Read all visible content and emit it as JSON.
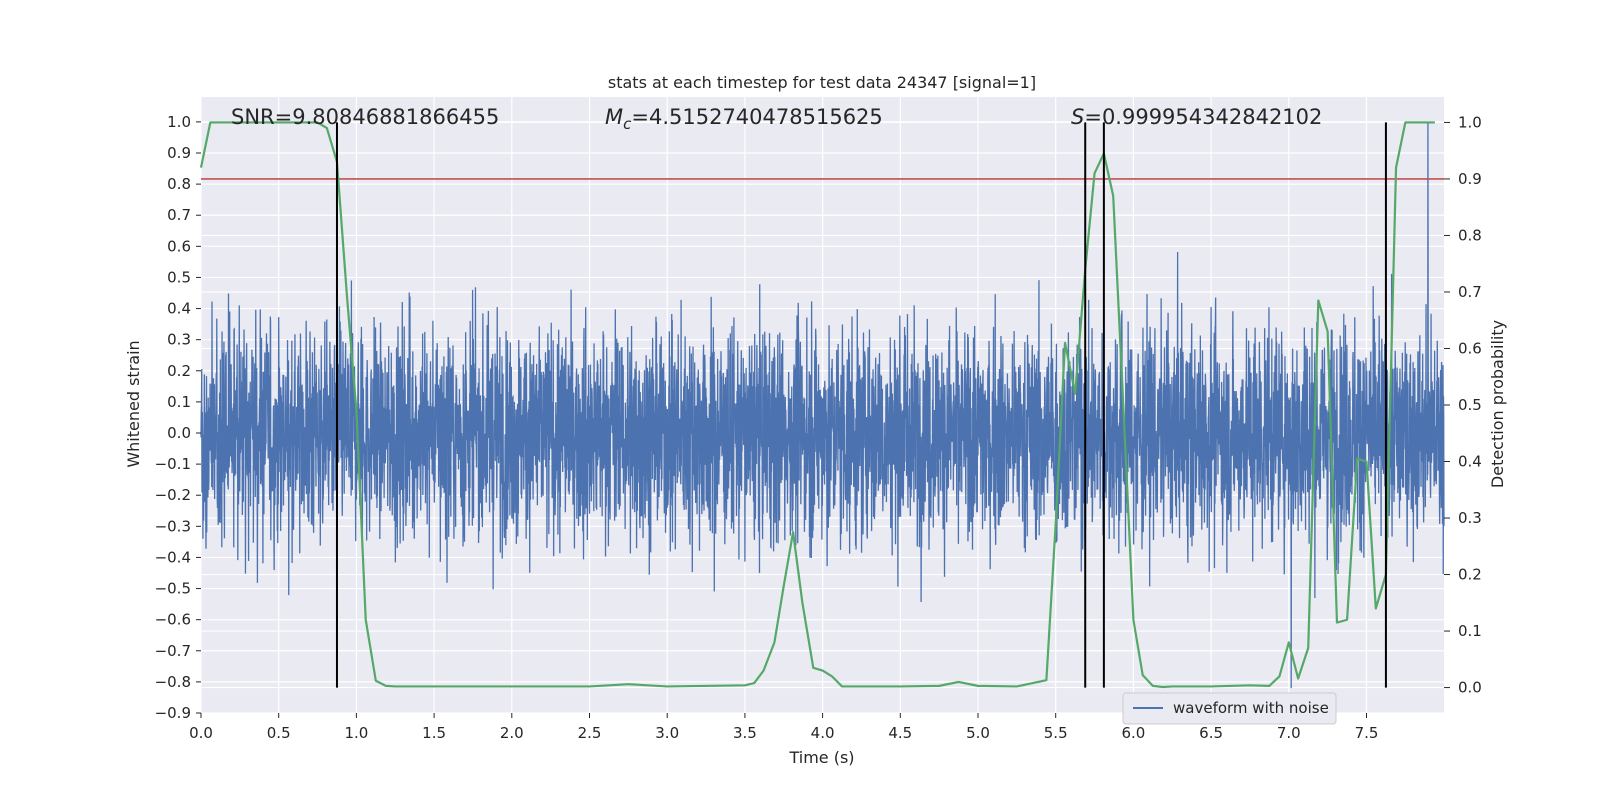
{
  "chart_data": {
    "type": "line",
    "title": "stats at each timestep for test data 24347 [signal=1]",
    "xlabel": "Time (s)",
    "ylabel": "Whitened strain",
    "y2label": "Detection probability",
    "xlim": [
      0.0,
      8.0
    ],
    "ylim": [
      -0.9,
      1.08
    ],
    "y2lim": [
      -0.045,
      1.045
    ],
    "xticks": [
      0.0,
      0.5,
      1.0,
      1.5,
      2.0,
      2.5,
      3.0,
      3.5,
      4.0,
      4.5,
      5.0,
      5.5,
      6.0,
      6.5,
      7.0,
      7.5
    ],
    "xtick_labels": [
      "0.0",
      "0.5",
      "1.0",
      "1.5",
      "2.0",
      "2.5",
      "3.0",
      "3.5",
      "4.0",
      "4.5",
      "5.0",
      "5.5",
      "6.0",
      "6.5",
      "7.0",
      "7.5"
    ],
    "yticks": [
      1.0,
      0.9,
      0.8,
      0.7,
      0.6,
      0.5,
      0.4,
      0.3,
      0.2,
      0.1,
      0.0,
      -0.1,
      -0.2,
      -0.3,
      -0.4,
      -0.5,
      -0.6,
      -0.7,
      -0.8,
      -0.9
    ],
    "ytick_labels": [
      "1.0",
      "0.9",
      "0.8",
      "0.7",
      "0.6",
      "0.5",
      "0.4",
      "0.3",
      "0.2",
      "0.1",
      "0.0",
      "−0.1",
      "−0.2",
      "−0.3",
      "−0.4",
      "−0.5",
      "−0.6",
      "−0.7",
      "−0.8",
      "−0.9"
    ],
    "y2ticks": [
      1.0,
      0.9,
      0.8,
      0.7,
      0.6,
      0.5,
      0.4,
      0.3,
      0.2,
      0.1,
      0.0
    ],
    "y2tick_labels": [
      "1.0",
      "0.9",
      "0.8",
      "0.7",
      "0.6",
      "0.5",
      "0.4",
      "0.3",
      "0.2",
      "0.1",
      "0.0"
    ],
    "grid": true,
    "annotations": {
      "snr": "SNR=9.80846881866455",
      "mc_sym": "M",
      "mc_sub": "c",
      "mc_val": "=4.5152740478515625",
      "s_sym": "S",
      "s_val": "=0.999954342842102"
    },
    "threshold": {
      "axis": "y2",
      "value": 0.9,
      "color": "#c44e52"
    },
    "event_lines": [
      0.875,
      5.69,
      5.81,
      7.625
    ],
    "event_line_range": [
      0.0,
      1.0
    ],
    "legend": {
      "location": "lower-right",
      "entries": [
        "waveform with noise"
      ]
    },
    "series": [
      {
        "name": "waveform with noise",
        "axis": "y",
        "color": "#4c72b0",
        "kind": "noise",
        "envelope_sigma": 0.17,
        "max_peak": 1.0,
        "min_peak": -0.82
      },
      {
        "name": "detection probability",
        "axis": "y2",
        "color": "#55a868",
        "x": [
          0.0,
          0.06,
          0.12,
          0.25,
          0.5,
          0.75,
          0.81,
          0.875,
          0.94,
          1.0,
          1.06,
          1.125,
          1.19,
          1.25,
          1.5,
          2.0,
          2.5,
          2.75,
          3.0,
          3.5,
          3.56,
          3.62,
          3.69,
          3.75,
          3.81,
          3.87,
          3.94,
          4.0,
          4.06,
          4.125,
          4.25,
          4.5,
          4.75,
          4.875,
          5.0,
          5.25,
          5.44,
          5.5,
          5.56,
          5.625,
          5.69,
          5.75,
          5.81,
          5.87,
          5.94,
          6.0,
          6.06,
          6.125,
          6.19,
          6.25,
          6.5,
          6.75,
          6.875,
          6.94,
          7.0,
          7.06,
          7.125,
          7.19,
          7.25,
          7.31,
          7.375,
          7.44,
          7.5,
          7.56,
          7.625,
          7.69,
          7.75,
          7.81,
          7.875,
          7.94
        ],
        "y": [
          0.92,
          1.0,
          1.0,
          1.0,
          1.0,
          1.0,
          0.99,
          0.93,
          0.69,
          0.49,
          0.12,
          0.012,
          0.003,
          0.002,
          0.002,
          0.002,
          0.002,
          0.006,
          0.002,
          0.004,
          0.008,
          0.03,
          0.08,
          0.18,
          0.275,
          0.15,
          0.035,
          0.03,
          0.02,
          0.002,
          0.002,
          0.002,
          0.003,
          0.01,
          0.003,
          0.002,
          0.013,
          0.29,
          0.61,
          0.52,
          0.74,
          0.91,
          0.945,
          0.87,
          0.47,
          0.12,
          0.022,
          0.003,
          0.001,
          0.002,
          0.002,
          0.004,
          0.003,
          0.02,
          0.08,
          0.016,
          0.07,
          0.685,
          0.63,
          0.115,
          0.12,
          0.405,
          0.4,
          0.14,
          0.2,
          0.92,
          1.0,
          1.0,
          1.0,
          1.0
        ]
      }
    ]
  }
}
